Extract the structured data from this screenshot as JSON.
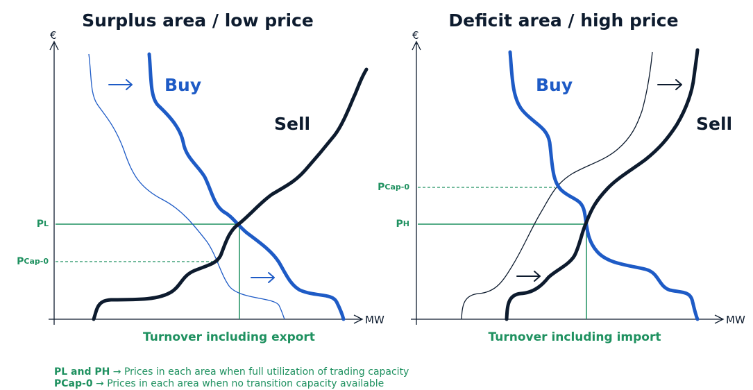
{
  "panels": [
    {
      "title": "Surplus area / low price",
      "y_axis": "€",
      "x_axis": "MW",
      "buy": "Buy",
      "sell": "Sell",
      "price_full": {
        "symbol": "P",
        "subscript": "L"
      },
      "price_cap": {
        "symbol": "P",
        "subscript": "Cap-0"
      },
      "turnover": "Turnover including export"
    },
    {
      "title": "Deficit area / high price",
      "y_axis": "€",
      "x_axis": "MW",
      "buy": "Buy",
      "sell": "Sell",
      "price_full": {
        "symbol": "P",
        "subscript": "H"
      },
      "price_cap": {
        "symbol": "P",
        "subscript": "Cap-0"
      },
      "turnover": "Turnover including import"
    }
  ],
  "footnotes": [
    {
      "term": "PL and PH",
      "text": "→ Prices in each area when full utilization of trading capacity"
    },
    {
      "term": "PCap-0",
      "text": "→ Prices in each area when no transition capacity available"
    }
  ]
}
